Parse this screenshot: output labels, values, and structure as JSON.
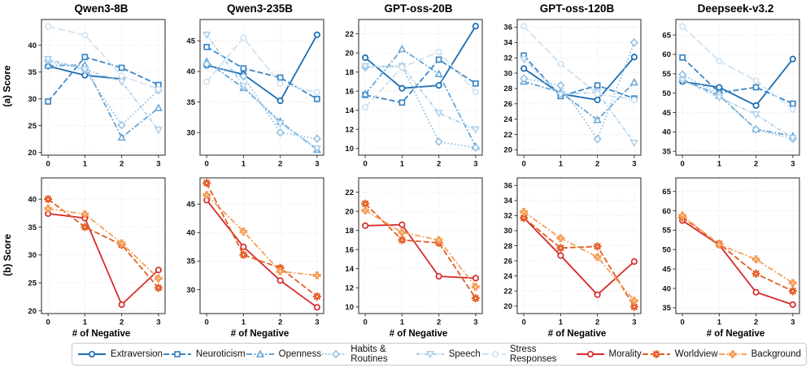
{
  "axis": {
    "row_a_label": "(a) Score",
    "row_b_label": "(b) Score",
    "xlabel": "# of Negative",
    "xticks": [
      "0",
      "1",
      "2",
      "3"
    ]
  },
  "colors": {
    "extraversion": "#1b6cb0",
    "neuroticism": "#3c86c6",
    "openness": "#64a4d6",
    "habits": "#8fc0e4",
    "speech": "#abcfeb",
    "stress": "#cfe3f4",
    "morality": "#d62a2a",
    "worldview": "#e55d25",
    "background": "#f5a059",
    "axis_border": "#3a3a3a",
    "grid": "#d9d9d9"
  },
  "series_styles": {
    "Extraversion": {
      "color": "#1b6cb0",
      "dash": "solid",
      "marker": "circle",
      "open": true
    },
    "Neuroticism": {
      "color": "#3c86c6",
      "dash": "dashed",
      "marker": "square",
      "open": true
    },
    "Openness": {
      "color": "#64a4d6",
      "dash": "dashdot",
      "marker": "triangle-up",
      "open": true
    },
    "Habits & Routines": {
      "color": "#8fc0e4",
      "dash": "dotted",
      "marker": "diamond",
      "open": true
    },
    "Speech": {
      "color": "#abcfeb",
      "dash": "dashdotfine",
      "marker": "triangle-down",
      "open": true
    },
    "Stress Responses": {
      "color": "#cfe3f4",
      "dash": "longdash",
      "marker": "circle",
      "open": true
    },
    "Morality": {
      "color": "#d62a2a",
      "dash": "solid",
      "marker": "circle",
      "open": true
    },
    "Worldview": {
      "color": "#e55d25",
      "dash": "dashed",
      "marker": "star8",
      "open": false
    },
    "Background": {
      "color": "#f5a059",
      "dash": "dashdot",
      "marker": "plus",
      "open": false
    }
  },
  "legend": [
    "Extraversion",
    "Neuroticism",
    "Openness",
    "Habits & Routines",
    "Speech",
    "Stress Responses",
    "Morality",
    "Worldview",
    "Background"
  ],
  "chart_data": [
    {
      "type": "line",
      "title": "Qwen3-8B",
      "row": "a",
      "x": [
        0,
        1,
        2,
        3
      ],
      "yticks": [
        20,
        25,
        30,
        35,
        40
      ],
      "ylim": [
        19.5,
        44.8
      ],
      "series": [
        {
          "name": "Extraversion",
          "values": [
            36.1,
            34.4,
            33.7,
            null
          ]
        },
        {
          "name": "Neuroticism",
          "values": [
            29.5,
            37.8,
            35.8,
            32.6
          ]
        },
        {
          "name": "Openness",
          "values": [
            36.2,
            36.3,
            22.8,
            28.3
          ]
        },
        {
          "name": "Habits & Routines",
          "values": [
            37.1,
            35.4,
            25.1,
            31.6
          ]
        },
        {
          "name": "Speech",
          "values": [
            37.4,
            35.5,
            33.2,
            24.2
          ]
        },
        {
          "name": "Stress Responses",
          "values": [
            43.5,
            41.9,
            34.3,
            31.8
          ]
        }
      ]
    },
    {
      "type": "line",
      "title": "Qwen3-235B",
      "row": "a",
      "x": [
        0,
        1,
        2,
        3
      ],
      "yticks": [
        30,
        35,
        40,
        45
      ],
      "ylim": [
        26.3,
        48.5
      ],
      "series": [
        {
          "name": "Extraversion",
          "values": [
            41.0,
            39.5,
            35.2,
            46.0
          ]
        },
        {
          "name": "Neuroticism",
          "values": [
            44.0,
            40.5,
            39.0,
            35.5
          ]
        },
        {
          "name": "Openness",
          "values": [
            41.6,
            37.3,
            31.8,
            27.2
          ]
        },
        {
          "name": "Habits & Routines",
          "values": [
            41.2,
            39.2,
            30.0,
            29.0
          ]
        },
        {
          "name": "Speech",
          "values": [
            46.0,
            37.6,
            31.5,
            27.4
          ]
        },
        {
          "name": "Stress Responses",
          "values": [
            38.3,
            45.5,
            38.0,
            36.6
          ]
        }
      ]
    },
    {
      "type": "line",
      "title": "GPT-oss-20B",
      "row": "a",
      "x": [
        0,
        1,
        2,
        3
      ],
      "yticks": [
        10,
        12,
        14,
        16,
        18,
        20,
        22
      ],
      "ylim": [
        9.3,
        23.5
      ],
      "series": [
        {
          "name": "Extraversion",
          "values": [
            19.5,
            16.3,
            16.6,
            22.8
          ]
        },
        {
          "name": "Neuroticism",
          "values": [
            15.6,
            14.8,
            19.3,
            16.8
          ]
        },
        {
          "name": "Openness",
          "values": [
            15.7,
            20.4,
            17.8,
            10.2
          ]
        },
        {
          "name": "Habits & Routines",
          "values": [
            18.5,
            18.6,
            10.7,
            10.1
          ]
        },
        {
          "name": "Speech",
          "values": [
            18.6,
            18.6,
            13.7,
            12.0
          ]
        },
        {
          "name": "Stress Responses",
          "values": [
            14.3,
            18.5,
            20.1,
            15.9
          ]
        }
      ]
    },
    {
      "type": "line",
      "title": "GPT-oss-120B",
      "row": "a",
      "x": [
        0,
        1,
        2,
        3
      ],
      "yticks": [
        20,
        22,
        24,
        26,
        28,
        30,
        32,
        34,
        36
      ],
      "ylim": [
        19.3,
        37.0
      ],
      "series": [
        {
          "name": "Extraversion",
          "values": [
            30.6,
            27.3,
            26.5,
            32.1
          ]
        },
        {
          "name": "Neuroticism",
          "values": [
            32.3,
            27.0,
            28.4,
            26.7
          ]
        },
        {
          "name": "Openness",
          "values": [
            28.9,
            27.5,
            23.9,
            28.8
          ]
        },
        {
          "name": "Habits & Routines",
          "values": [
            29.3,
            28.4,
            21.4,
            34.0
          ]
        },
        {
          "name": "Speech",
          "values": [
            31.8,
            27.2,
            27.5,
            20.9
          ]
        },
        {
          "name": "Stress Responses",
          "values": [
            36.1,
            31.2,
            27.3,
            26.5
          ]
        }
      ]
    },
    {
      "type": "line",
      "title": "Deepseek-v3.2",
      "row": "a",
      "x": [
        0,
        1,
        2,
        3
      ],
      "yticks": [
        35,
        40,
        45,
        50,
        55,
        60,
        65
      ],
      "ylim": [
        34.0,
        69.0
      ],
      "series": [
        {
          "name": "Extraversion",
          "values": [
            53.0,
            51.5,
            46.8,
            58.8
          ]
        },
        {
          "name": "Neuroticism",
          "values": [
            59.2,
            50.1,
            51.5,
            47.3
          ]
        },
        {
          "name": "Openness",
          "values": [
            53.5,
            49.4,
            40.7,
            38.9
          ]
        },
        {
          "name": "Habits & Routines",
          "values": [
            54.8,
            49.6,
            40.6,
            38.2
          ]
        },
        {
          "name": "Speech",
          "values": [
            53.3,
            48.9,
            44.5,
            38.4
          ]
        },
        {
          "name": "Stress Responses",
          "values": [
            67.2,
            58.3,
            53.2,
            45.8
          ]
        }
      ]
    },
    {
      "type": "line",
      "title": "",
      "row": "b",
      "x": [
        0,
        1,
        2,
        3
      ],
      "yticks": [
        20,
        25,
        30,
        35,
        40
      ],
      "ylim": [
        19.5,
        43.8
      ],
      "series": [
        {
          "name": "Morality",
          "values": [
            37.4,
            36.6,
            21.1,
            27.3
          ]
        },
        {
          "name": "Worldview",
          "values": [
            40.0,
            35.0,
            31.8,
            24.1
          ]
        },
        {
          "name": "Background",
          "values": [
            38.3,
            37.3,
            32.1,
            25.8
          ]
        }
      ]
    },
    {
      "type": "line",
      "title": "",
      "row": "b",
      "x": [
        0,
        1,
        2,
        3
      ],
      "yticks": [
        30,
        35,
        40,
        45
      ],
      "ylim": [
        25.8,
        49.6
      ],
      "series": [
        {
          "name": "Morality",
          "values": [
            45.7,
            37.5,
            31.6,
            26.9
          ]
        },
        {
          "name": "Worldview",
          "values": [
            48.7,
            36.1,
            33.8,
            28.8
          ]
        },
        {
          "name": "Background",
          "values": [
            46.6,
            40.2,
            33.2,
            32.5
          ]
        }
      ]
    },
    {
      "type": "line",
      "title": "",
      "row": "b",
      "x": [
        0,
        1,
        2,
        3
      ],
      "yticks": [
        10,
        12,
        14,
        16,
        18,
        20,
        22
      ],
      "ylim": [
        9.3,
        23.5
      ],
      "series": [
        {
          "name": "Morality",
          "values": [
            18.5,
            18.6,
            13.2,
            13.0
          ]
        },
        {
          "name": "Worldview",
          "values": [
            20.8,
            17.0,
            16.7,
            10.9
          ]
        },
        {
          "name": "Background",
          "values": [
            20.1,
            17.8,
            17.0,
            12.1
          ]
        }
      ]
    },
    {
      "type": "line",
      "title": "",
      "row": "b",
      "x": [
        0,
        1,
        2,
        3
      ],
      "yticks": [
        20,
        22,
        24,
        26,
        28,
        30,
        32,
        34,
        36
      ],
      "ylim": [
        19.0,
        37.0
      ],
      "series": [
        {
          "name": "Morality",
          "values": [
            31.7,
            26.7,
            21.5,
            25.9
          ]
        },
        {
          "name": "Worldview",
          "values": [
            31.7,
            27.7,
            27.9,
            19.9
          ]
        },
        {
          "name": "Background",
          "values": [
            32.5,
            29.0,
            26.5,
            20.7
          ]
        }
      ]
    },
    {
      "type": "line",
      "title": "",
      "row": "b",
      "x": [
        0,
        1,
        2,
        3
      ],
      "yticks": [
        35,
        40,
        45,
        50,
        55,
        60,
        65
      ],
      "ylim": [
        33.5,
        68.5
      ],
      "series": [
        {
          "name": "Morality",
          "values": [
            57.5,
            51.2,
            39.0,
            35.8
          ]
        },
        {
          "name": "Worldview",
          "values": [
            58.3,
            51.5,
            43.8,
            39.3
          ]
        },
        {
          "name": "Background",
          "values": [
            58.8,
            51.3,
            47.5,
            41.4
          ]
        }
      ]
    }
  ]
}
